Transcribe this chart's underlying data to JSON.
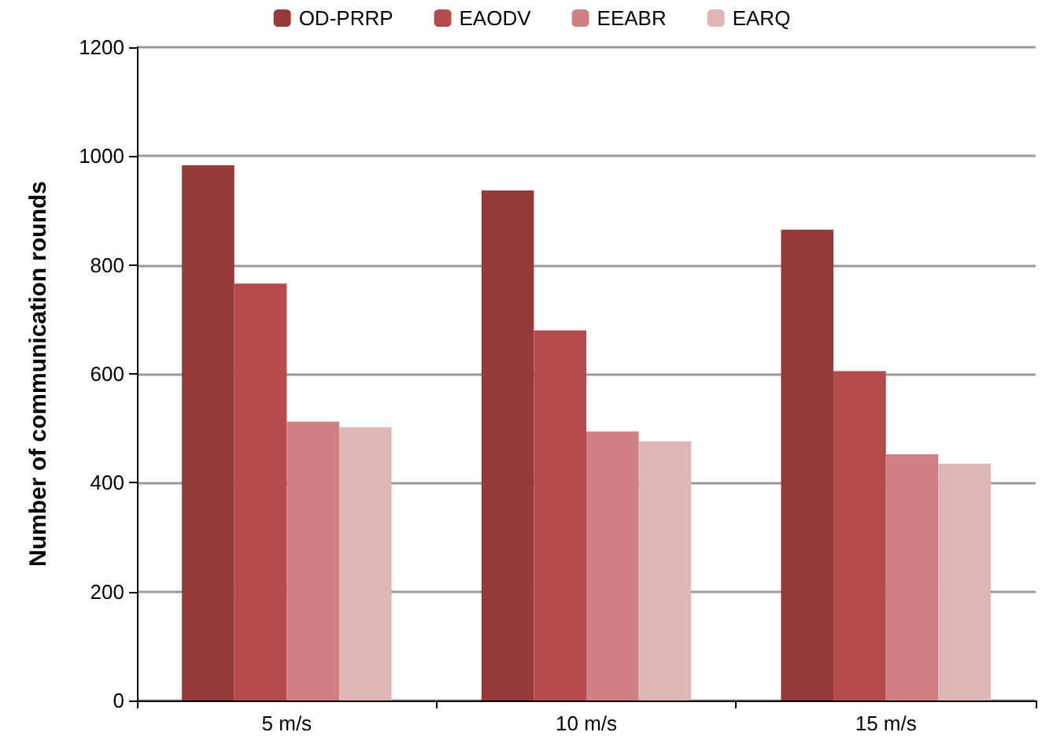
{
  "chart_data": {
    "type": "bar",
    "ylabel": "Number of communication rounds",
    "categories": [
      "5 m/s",
      "10 m/s",
      "15 m/s"
    ],
    "series": [
      {
        "name": "OD-PRRP",
        "color": "#953a3a",
        "values": [
          983,
          937,
          865
        ]
      },
      {
        "name": "EAODV",
        "color": "#b54b4b",
        "values": [
          766,
          680,
          605
        ]
      },
      {
        "name": "EEABR",
        "color": "#cf8080",
        "values": [
          512,
          494,
          452
        ]
      },
      {
        "name": "EARQ",
        "color": "#e0b5b5",
        "values": [
          502,
          476,
          435
        ]
      }
    ],
    "ylim": [
      0,
      1200
    ],
    "yticks": [
      0,
      200,
      400,
      600,
      800,
      1000,
      1200
    ],
    "grid": "y",
    "legend": "top"
  }
}
